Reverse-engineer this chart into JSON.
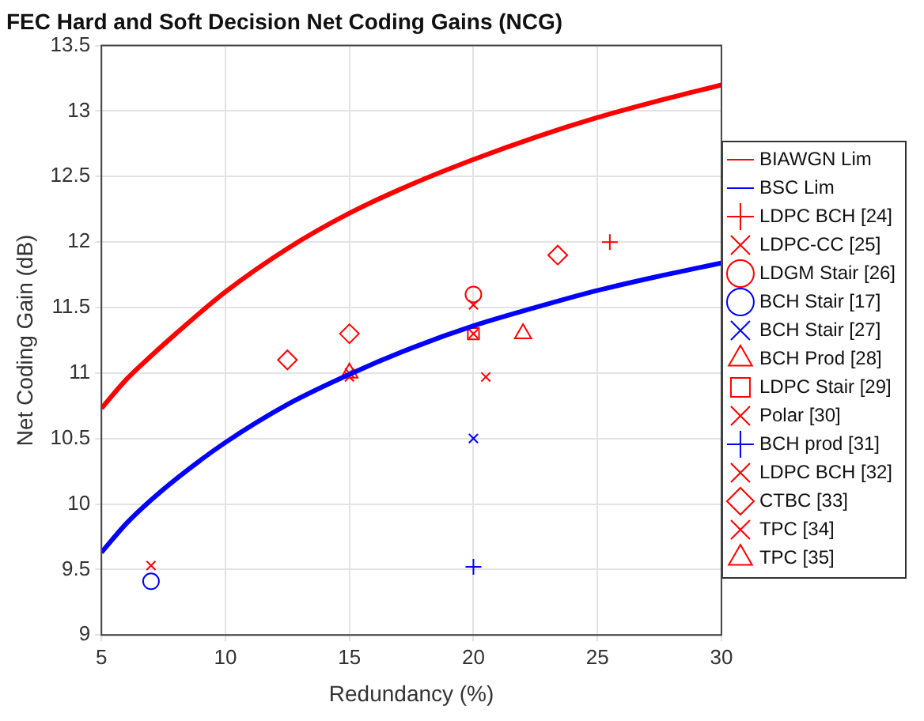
{
  "chart_data": {
    "type": "scatter",
    "title": "FEC Hard and Soft Decision Net Coding Gains (NCG)",
    "xlabel": "Redundancy (%)",
    "ylabel": "Net Coding Gain (dB)",
    "xlim": [
      5,
      30
    ],
    "xticks": [
      5,
      10,
      15,
      20,
      25,
      30
    ],
    "ylim": [
      9,
      13.5
    ],
    "yticks": [
      9,
      9.5,
      10,
      10.5,
      11,
      11.5,
      12,
      12.5,
      13,
      13.5
    ],
    "grid": true,
    "legend": "right",
    "series": [
      {
        "name": "BIAWGN Lim",
        "type": "line",
        "color": "#ff0000",
        "marker": "none",
        "x": [
          5,
          6,
          7,
          8,
          10,
          12.5,
          15,
          17.5,
          20,
          22.5,
          25,
          27.5,
          30
        ],
        "values": [
          10.73,
          10.95,
          11.13,
          11.3,
          11.62,
          11.95,
          12.22,
          12.44,
          12.63,
          12.8,
          12.95,
          13.08,
          13.2
        ]
      },
      {
        "name": "BSC Lim",
        "type": "line",
        "color": "#0000ff",
        "marker": "none",
        "x": [
          5,
          6,
          7,
          8,
          10,
          12.5,
          15,
          17.5,
          20,
          22.5,
          25,
          27.5,
          30
        ],
        "values": [
          9.63,
          9.85,
          10.03,
          10.19,
          10.47,
          10.76,
          10.99,
          11.19,
          11.36,
          11.5,
          11.63,
          11.74,
          11.84
        ]
      },
      {
        "name": "LDPC BCH [24]",
        "color": "#ff0000",
        "marker": "plus",
        "x": [
          25.5
        ],
        "values": [
          12.0
        ]
      },
      {
        "name": "LDPC-CC [25]",
        "color": "#ff0000",
        "marker": "cross",
        "x": [
          20
        ],
        "values": [
          11.52
        ]
      },
      {
        "name": "LDGM Stair [26]",
        "color": "#ff0000",
        "marker": "circle",
        "x": [
          20
        ],
        "values": [
          11.6
        ]
      },
      {
        "name": "BCH Stair [17]",
        "color": "#0000ff",
        "marker": "circle",
        "x": [
          7
        ],
        "values": [
          9.41
        ]
      },
      {
        "name": "BCH Stair [27]",
        "color": "#0000ff",
        "marker": "cross",
        "x": [
          20
        ],
        "values": [
          10.5
        ]
      },
      {
        "name": "BCH Prod [28]",
        "color": "#ff0000",
        "marker": "triangle",
        "x": [
          22
        ],
        "values": [
          11.3
        ]
      },
      {
        "name": "LDPC Stair [29]",
        "color": "#ff0000",
        "marker": "square",
        "x": [
          20
        ],
        "values": [
          11.3
        ]
      },
      {
        "name": "Polar [30]",
        "color": "#ff0000",
        "marker": "cross",
        "x": [
          7,
          20
        ],
        "values": [
          9.53,
          11.3
        ]
      },
      {
        "name": "BCH prod [31]",
        "color": "#0000ff",
        "marker": "plus",
        "x": [
          20
        ],
        "values": [
          9.52
        ]
      },
      {
        "name": "LDPC BCH [32]",
        "color": "#ff0000",
        "marker": "cross",
        "x": [
          15,
          20.5
        ],
        "values": [
          10.97,
          10.97
        ]
      },
      {
        "name": "CTBC [33]",
        "color": "#ff0000",
        "marker": "diamond",
        "x": [
          12.5,
          15,
          23.4
        ],
        "values": [
          11.1,
          11.3,
          11.9
        ]
      },
      {
        "name": "TPC [34]",
        "color": "#ff0000",
        "marker": "cross",
        "x": [
          15
        ],
        "values": [
          11.0
        ]
      },
      {
        "name": "TPC [35]",
        "color": "#ff0000",
        "marker": "triangle",
        "x": [
          15
        ],
        "values": [
          11.0
        ]
      }
    ]
  }
}
